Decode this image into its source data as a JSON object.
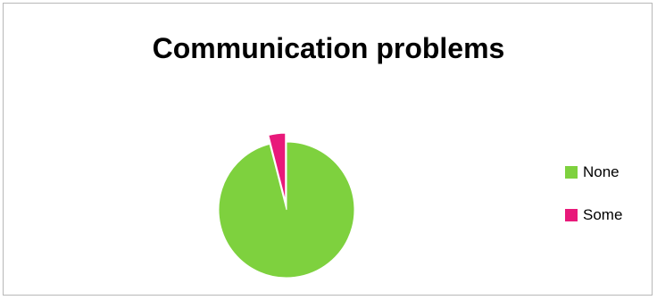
{
  "chart_data": {
    "type": "pie",
    "title": "Communication problems",
    "categories": [
      "None",
      "Some"
    ],
    "values": [
      96,
      4
    ],
    "colors": [
      "#7ED13E",
      "#E8197A"
    ],
    "exploded": [
      false,
      true
    ],
    "start_angle_deg": 0,
    "legend": {
      "placement": "right",
      "entries": [
        "None",
        "Some"
      ]
    }
  }
}
